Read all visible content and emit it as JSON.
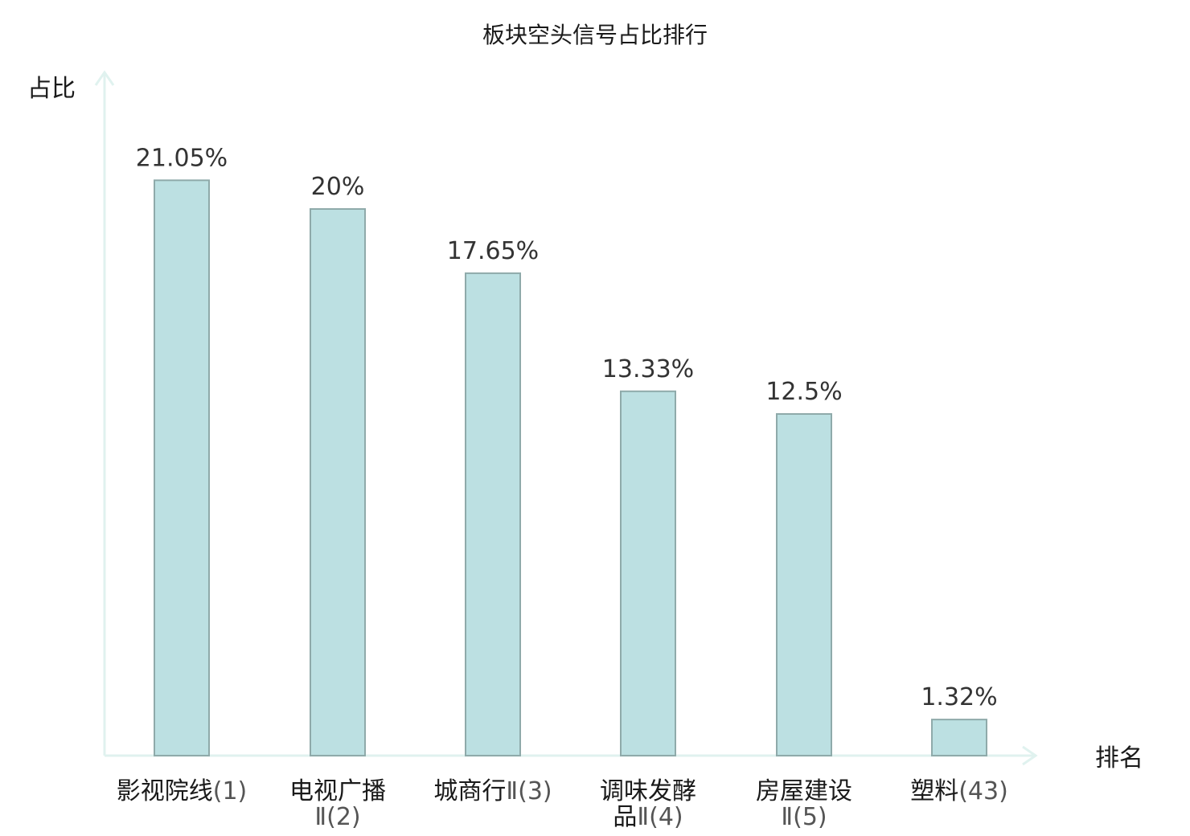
{
  "chart_data": {
    "type": "bar",
    "title": "板块空头信号占比排行",
    "ylabel": "占比",
    "xlabel": "排名",
    "ylim": [
      0,
      25
    ],
    "grid": false,
    "categories": [
      "影视院线(1)",
      "电视广播Ⅱ(2)",
      "城商行Ⅱ(3)",
      "调味发酵品Ⅱ(4)",
      "房屋建设Ⅱ(5)",
      "塑料(43)"
    ],
    "category_parts": [
      {
        "name": "影视院线",
        "rank": "(1)",
        "lines": [
          [
            "影视院线",
            "(1)"
          ]
        ]
      },
      {
        "name": "电视广播",
        "rank": "Ⅱ(2)",
        "lines": [
          [
            "电视广播",
            ""
          ],
          [
            "",
            "Ⅱ(2)"
          ]
        ]
      },
      {
        "name": "城商行",
        "rank": "Ⅱ(3)",
        "lines": [
          [
            "城商行",
            "Ⅱ(3)"
          ]
        ]
      },
      {
        "name": "调味发酵",
        "rank": "品Ⅱ(4)",
        "lines": [
          [
            "调味发酵",
            ""
          ],
          [
            "品",
            "Ⅱ(4)"
          ]
        ]
      },
      {
        "name": "房屋建设",
        "rank": "Ⅱ(5)",
        "lines": [
          [
            "房屋建设",
            ""
          ],
          [
            "",
            "Ⅱ(5)"
          ]
        ]
      },
      {
        "name": "塑料",
        "rank": "(43)",
        "lines": [
          [
            "塑料",
            "(43)"
          ]
        ],
        "highlight": true
      }
    ],
    "values": [
      21.05,
      20,
      17.65,
      13.33,
      12.5,
      1.32
    ],
    "value_labels": [
      "21.05%",
      "20%",
      "17.65%",
      "13.33%",
      "12.5%",
      "1.32%"
    ],
    "colors": {
      "bar_fill": "#bce0e2",
      "bar_stroke": "#8faaaa",
      "axis": "#e0f2ef",
      "highlight_text": "#e01010"
    }
  }
}
